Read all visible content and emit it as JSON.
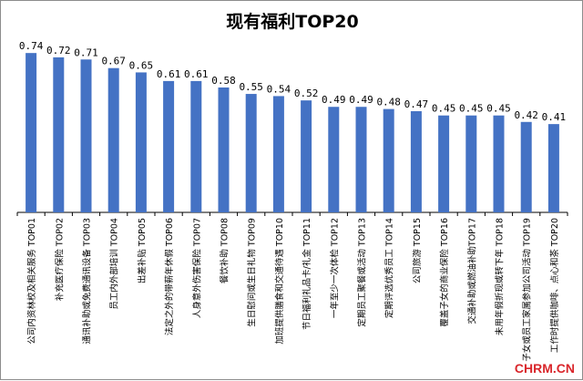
{
  "chart_data": {
    "type": "bar",
    "title": "现有福利TOP20",
    "xlabel": "",
    "ylabel": "",
    "ylim": [
      0,
      0.8
    ],
    "grid": false,
    "legend": "none",
    "bar_color": "#4472c4",
    "categories": [
      "公司内资林校及相关服务 TOP01",
      "补充医疗保险 TOP02",
      "通讯补助或免费通讯设备 TOP03",
      "员工内外部培训 TOP04",
      "出差补贴 TOP05",
      "法定之外的带薪年休假 TOP06",
      "人身意外伤害保险 TOP07",
      "餐饮补助 TOP08",
      "生日慰问或生日礼物 TOP09",
      "加班提供膳食和交通待遇 TOP10",
      "节日福利礼品卡/礼金 TOP11",
      "一年至少一次体检 TOP12",
      "定期员工聚餐或活动 TOP13",
      "定期评选优秀员工 TOP14",
      "公司旅游 TOP15",
      "覆盖子女的商业保险 TOP16",
      "交通补助或燃油补助TOP17",
      "未用年假折现或转下年 TOP18",
      "子女或员工家属参加公司活动 TOP19",
      "工作时提供咖啡、点心和茶 TOP20"
    ],
    "values": [
      0.74,
      0.72,
      0.71,
      0.67,
      0.65,
      0.61,
      0.61,
      0.58,
      0.55,
      0.54,
      0.52,
      0.49,
      0.49,
      0.48,
      0.47,
      0.45,
      0.45,
      0.45,
      0.42,
      0.41
    ]
  },
  "value_labels": [
    "0.74",
    "0.72",
    "0.71",
    "0.67",
    "0.65",
    "0.61",
    "0.61",
    "0.58",
    "0.55",
    "0.54",
    "0.52",
    "0.49",
    "0.49",
    "0.48",
    "0.47",
    "0.45",
    "0.45",
    "0.45",
    "0.42",
    "0.41"
  ],
  "watermark": "CHRM.CN"
}
